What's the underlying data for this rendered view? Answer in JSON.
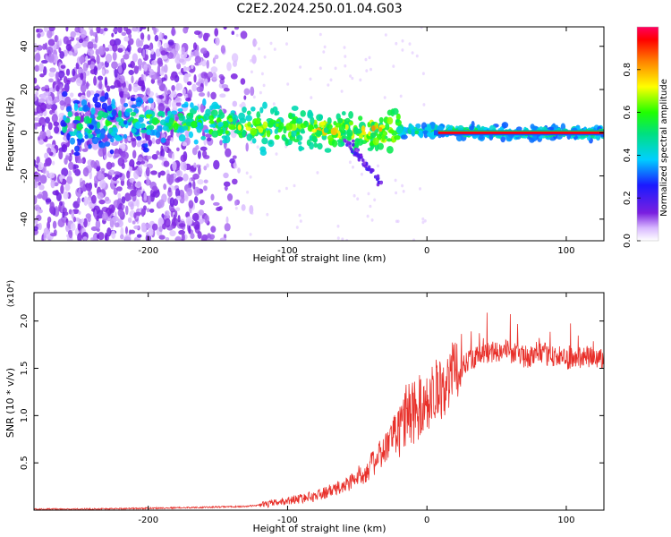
{
  "title": "C2E2.2024.250.01.04.G03",
  "chart_data": [
    {
      "type": "heatmap",
      "xlabel": "Height of straight line (km)",
      "ylabel": "Frequency (Hz)",
      "xlim": [
        -282,
        127
      ],
      "ylim": [
        -50,
        49
      ],
      "x_ticks": [
        "-200",
        "-100",
        "0",
        "100"
      ],
      "x_tick_values": [
        -200,
        -100,
        0,
        100
      ],
      "y_ticks": [
        "-40",
        "-20",
        "0",
        "20",
        "40"
      ],
      "y_tick_values": [
        -40,
        -20,
        0,
        20,
        40
      ],
      "colorbar": {
        "label": "Normalized spectral amplitude",
        "ticks": [
          "0.0",
          "0.2",
          "0.4",
          "0.6",
          "0.8"
        ],
        "tick_values": [
          0.0,
          0.2,
          0.4,
          0.6,
          0.8
        ],
        "range": [
          0,
          1
        ]
      },
      "ridge": [
        {
          "x": -255,
          "y": 4
        },
        {
          "x": -200,
          "y": 6
        },
        {
          "x": -150,
          "y": 4
        },
        {
          "x": -100,
          "y": 2
        },
        {
          "x": -60,
          "y": 1
        },
        {
          "x": -30,
          "y": 1
        },
        {
          "x": 0,
          "y": 1
        },
        {
          "x": 50,
          "y": 0
        },
        {
          "x": 127,
          "y": 0
        }
      ],
      "grid": false
    },
    {
      "type": "line",
      "xlabel": "Height of straight line (km)",
      "ylabel": "SNR (10 * v/v)",
      "y_multiplier": "(x10⁴)",
      "xlim": [
        -282,
        127
      ],
      "ylim": [
        0,
        2.3
      ],
      "x_ticks": [
        "-200",
        "-100",
        "0",
        "100"
      ],
      "x_tick_values": [
        -200,
        -100,
        0,
        100
      ],
      "y_ticks": [
        "0.5",
        "1.0",
        "1.5",
        "2.0"
      ],
      "y_tick_values": [
        0.5,
        1.0,
        1.5,
        2.0
      ],
      "color": "#e8302a",
      "series": [
        {
          "x": [
            -282,
            -250,
            -200,
            -160,
            -130,
            -115,
            -100,
            -80,
            -60,
            -45,
            -35,
            -25,
            -15,
            -8,
            0,
            10,
            20,
            30,
            40,
            55,
            70,
            85,
            100,
            115,
            127
          ],
          "values": [
            0.01,
            0.01,
            0.02,
            0.03,
            0.04,
            0.06,
            0.1,
            0.15,
            0.25,
            0.4,
            0.55,
            0.75,
            1.0,
            1.05,
            1.15,
            1.3,
            1.45,
            1.6,
            1.65,
            1.7,
            1.62,
            1.65,
            1.6,
            1.62,
            1.6
          ]
        }
      ],
      "grid": false
    }
  ]
}
